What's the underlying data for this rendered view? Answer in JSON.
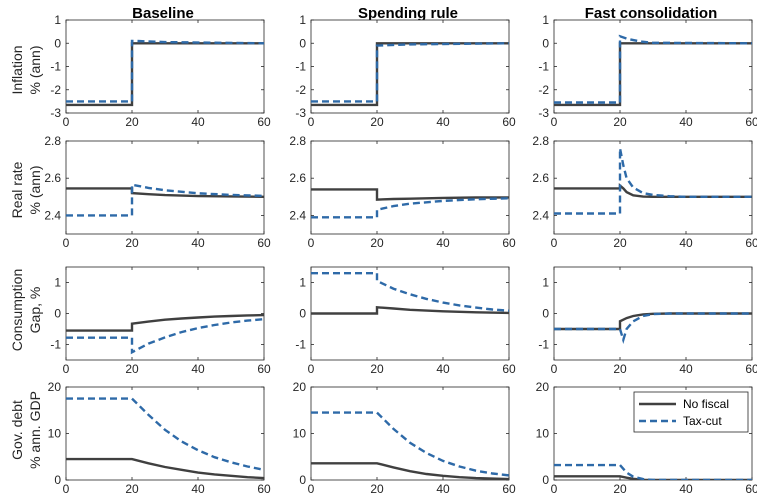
{
  "figure": {
    "columns": [
      "Baseline",
      "Spending rule",
      "Fast consolidation"
    ],
    "row_labels": [
      [
        "Inflation",
        "% (ann)"
      ],
      [
        "Real rate",
        "% (ann)"
      ],
      [
        "Consumption",
        "Gap, %"
      ],
      [
        "Gov. debt",
        "% ann. GDP"
      ]
    ],
    "legend": {
      "entries": [
        "No fiscal",
        "Tax-cut"
      ],
      "location": "top-right of the bottom-right panel"
    },
    "colors": {
      "no_fiscal": "#404040",
      "tax_cut": "#2e6aa8",
      "axis": "#262626"
    }
  },
  "chart_data": [
    {
      "type": "line",
      "row": 0,
      "col": 0,
      "title": "Baseline",
      "ylabel": "Inflation % (ann)",
      "xlim": [
        0,
        60
      ],
      "ylim": [
        -3,
        1
      ],
      "xticks": [
        0,
        20,
        40,
        60
      ],
      "yticks": [
        -3,
        -2,
        -1,
        0,
        1
      ],
      "series": [
        {
          "name": "No fiscal",
          "style": "solid",
          "x": [
            0,
            20,
            20,
            60
          ],
          "y": [
            -2.65,
            -2.65,
            0,
            0
          ]
        },
        {
          "name": "Tax-cut",
          "style": "dashed",
          "x": [
            0,
            20,
            20,
            21,
            30,
            60
          ],
          "y": [
            -2.5,
            -2.5,
            0.1,
            0.1,
            0.05,
            0
          ]
        }
      ]
    },
    {
      "type": "line",
      "row": 0,
      "col": 1,
      "title": "Spending rule",
      "xlim": [
        0,
        60
      ],
      "ylim": [
        -3,
        1
      ],
      "xticks": [
        0,
        20,
        40,
        60
      ],
      "yticks": [
        -3,
        -2,
        -1,
        0,
        1
      ],
      "series": [
        {
          "name": "No fiscal",
          "style": "solid",
          "x": [
            0,
            20,
            20,
            60
          ],
          "y": [
            -2.65,
            -2.65,
            0,
            0
          ]
        },
        {
          "name": "Tax-cut",
          "style": "dashed",
          "x": [
            0,
            20,
            20,
            30,
            60
          ],
          "y": [
            -2.5,
            -2.5,
            -0.1,
            -0.05,
            0
          ]
        }
      ]
    },
    {
      "type": "line",
      "row": 0,
      "col": 2,
      "title": "Fast consolidation",
      "xlim": [
        0,
        60
      ],
      "ylim": [
        -3,
        1
      ],
      "xticks": [
        0,
        20,
        40,
        60
      ],
      "yticks": [
        -3,
        -2,
        -1,
        0,
        1
      ],
      "series": [
        {
          "name": "No fiscal",
          "style": "solid",
          "x": [
            0,
            20,
            20,
            60
          ],
          "y": [
            -2.65,
            -2.65,
            0,
            0
          ]
        },
        {
          "name": "Tax-cut",
          "style": "dashed",
          "x": [
            0,
            20,
            20,
            22,
            26,
            30,
            60
          ],
          "y": [
            -2.55,
            -2.55,
            0.3,
            0.2,
            0.08,
            0.02,
            0
          ]
        }
      ]
    },
    {
      "type": "line",
      "row": 1,
      "col": 0,
      "ylabel": "Real rate % (ann)",
      "xlim": [
        0,
        60
      ],
      "ylim": [
        2.3,
        2.8
      ],
      "xticks": [
        0,
        20,
        40,
        60
      ],
      "yticks": [
        2.4,
        2.6,
        2.8
      ],
      "series": [
        {
          "name": "No fiscal",
          "style": "solid",
          "x": [
            0,
            20,
            20,
            25,
            30,
            40,
            50,
            60
          ],
          "y": [
            2.545,
            2.545,
            2.52,
            2.514,
            2.509,
            2.504,
            2.502,
            2.5
          ]
        },
        {
          "name": "Tax-cut",
          "style": "dashed",
          "x": [
            0,
            20,
            20,
            25,
            30,
            40,
            50,
            60
          ],
          "y": [
            2.4,
            2.4,
            2.565,
            2.548,
            2.535,
            2.519,
            2.51,
            2.505
          ]
        }
      ]
    },
    {
      "type": "line",
      "row": 1,
      "col": 1,
      "xlim": [
        0,
        60
      ],
      "ylim": [
        2.3,
        2.8
      ],
      "xticks": [
        0,
        20,
        40,
        60
      ],
      "yticks": [
        2.4,
        2.6,
        2.8
      ],
      "series": [
        {
          "name": "No fiscal",
          "style": "solid",
          "x": [
            0,
            20,
            20,
            25,
            30,
            40,
            50,
            60
          ],
          "y": [
            2.54,
            2.54,
            2.485,
            2.488,
            2.49,
            2.494,
            2.496,
            2.497
          ]
        },
        {
          "name": "Tax-cut",
          "style": "dashed",
          "x": [
            0,
            20,
            20,
            25,
            30,
            40,
            50,
            60
          ],
          "y": [
            2.39,
            2.39,
            2.43,
            2.45,
            2.463,
            2.478,
            2.487,
            2.492
          ]
        }
      ]
    },
    {
      "type": "line",
      "row": 1,
      "col": 2,
      "xlim": [
        0,
        60
      ],
      "ylim": [
        2.3,
        2.8
      ],
      "xticks": [
        0,
        20,
        40,
        60
      ],
      "yticks": [
        2.4,
        2.6,
        2.8
      ],
      "series": [
        {
          "name": "No fiscal",
          "style": "solid",
          "x": [
            0,
            20,
            20,
            21,
            22,
            24,
            27,
            30,
            40,
            60
          ],
          "y": [
            2.545,
            2.545,
            2.56,
            2.545,
            2.525,
            2.508,
            2.501,
            2.5,
            2.5,
            2.5
          ]
        },
        {
          "name": "Tax-cut",
          "style": "dashed",
          "x": [
            0,
            20,
            20,
            21,
            22,
            24,
            27,
            30,
            35,
            40,
            60
          ],
          "y": [
            2.41,
            2.41,
            2.76,
            2.67,
            2.6,
            2.55,
            2.52,
            2.51,
            2.503,
            2.5,
            2.5
          ]
        }
      ]
    },
    {
      "type": "line",
      "row": 2,
      "col": 0,
      "ylabel": "Consumption Gap, %",
      "xlim": [
        0,
        60
      ],
      "ylim": [
        -1.5,
        1.5
      ],
      "xticks": [
        0,
        20,
        40,
        60
      ],
      "yticks": [
        -1,
        0,
        1
      ],
      "series": [
        {
          "name": "No fiscal",
          "style": "solid",
          "x": [
            0,
            20,
            20,
            25,
            30,
            35,
            40,
            45,
            50,
            55,
            60
          ],
          "y": [
            -0.55,
            -0.55,
            -0.33,
            -0.26,
            -0.2,
            -0.16,
            -0.13,
            -0.1,
            -0.08,
            -0.06,
            -0.05
          ]
        },
        {
          "name": "Tax-cut",
          "style": "dashed",
          "x": [
            0,
            20,
            20,
            25,
            30,
            35,
            40,
            45,
            50,
            55,
            60
          ],
          "y": [
            -0.78,
            -0.78,
            -1.25,
            -0.97,
            -0.77,
            -0.6,
            -0.47,
            -0.37,
            -0.29,
            -0.23,
            -0.18
          ]
        }
      ]
    },
    {
      "type": "line",
      "row": 2,
      "col": 1,
      "xlim": [
        0,
        60
      ],
      "ylim": [
        -1.5,
        1.5
      ],
      "xticks": [
        0,
        20,
        40,
        60
      ],
      "yticks": [
        -1,
        0,
        1
      ],
      "series": [
        {
          "name": "No fiscal",
          "style": "solid",
          "x": [
            0,
            20,
            20,
            25,
            30,
            40,
            50,
            60
          ],
          "y": [
            0,
            0,
            0.2,
            0.16,
            0.12,
            0.07,
            0.04,
            0.02
          ]
        },
        {
          "name": "Tax-cut",
          "style": "dashed",
          "x": [
            0,
            20,
            20,
            25,
            30,
            35,
            40,
            45,
            50,
            55,
            60
          ],
          "y": [
            1.3,
            1.3,
            1.05,
            0.8,
            0.62,
            0.47,
            0.35,
            0.26,
            0.19,
            0.13,
            0.09
          ]
        }
      ]
    },
    {
      "type": "line",
      "row": 2,
      "col": 2,
      "xlim": [
        0,
        60
      ],
      "ylim": [
        -1.5,
        1.5
      ],
      "xticks": [
        0,
        20,
        40,
        60
      ],
      "yticks": [
        -1,
        0,
        1
      ],
      "series": [
        {
          "name": "No fiscal",
          "style": "solid",
          "x": [
            0,
            20,
            20,
            22,
            24,
            27,
            30,
            35,
            60
          ],
          "y": [
            -0.5,
            -0.5,
            -0.25,
            -0.15,
            -0.08,
            -0.03,
            -0.01,
            0,
            0
          ]
        },
        {
          "name": "Tax-cut",
          "style": "dashed",
          "x": [
            0,
            20,
            21,
            22,
            24,
            27,
            30,
            35,
            60
          ],
          "y": [
            -0.5,
            -0.5,
            -0.85,
            -0.5,
            -0.25,
            -0.08,
            -0.02,
            0,
            0
          ]
        }
      ]
    },
    {
      "type": "line",
      "row": 3,
      "col": 0,
      "ylabel": "Gov. debt % ann. GDP",
      "xlim": [
        0,
        60
      ],
      "ylim": [
        0,
        20
      ],
      "xticks": [
        0,
        20,
        40,
        60
      ],
      "yticks": [
        0,
        10,
        20
      ],
      "series": [
        {
          "name": "No fiscal",
          "style": "solid",
          "x": [
            0,
            20,
            25,
            30,
            35,
            40,
            45,
            50,
            55,
            60
          ],
          "y": [
            4.5,
            4.5,
            3.6,
            2.8,
            2.2,
            1.6,
            1.2,
            0.9,
            0.6,
            0.4
          ]
        },
        {
          "name": "Tax-cut",
          "style": "dashed",
          "x": [
            0,
            20,
            25,
            30,
            35,
            40,
            45,
            50,
            55,
            60
          ],
          "y": [
            17.5,
            17.5,
            14,
            10.8,
            8.3,
            6.4,
            4.9,
            3.8,
            2.9,
            2.2
          ]
        }
      ]
    },
    {
      "type": "line",
      "row": 3,
      "col": 1,
      "xlim": [
        0,
        60
      ],
      "ylim": [
        0,
        20
      ],
      "xticks": [
        0,
        20,
        40,
        60
      ],
      "yticks": [
        0,
        10,
        20
      ],
      "series": [
        {
          "name": "No fiscal",
          "style": "solid",
          "x": [
            0,
            20,
            25,
            30,
            35,
            40,
            45,
            50,
            55,
            60
          ],
          "y": [
            3.6,
            3.6,
            2.7,
            1.9,
            1.3,
            0.9,
            0.6,
            0.4,
            0.3,
            0.2
          ]
        },
        {
          "name": "Tax-cut",
          "style": "dashed",
          "x": [
            0,
            20,
            25,
            30,
            35,
            40,
            45,
            50,
            55,
            60
          ],
          "y": [
            14.5,
            14.5,
            11,
            8,
            5.8,
            4.1,
            2.9,
            2,
            1.4,
            1
          ]
        }
      ]
    },
    {
      "type": "line",
      "row": 3,
      "col": 2,
      "xlim": [
        0,
        60
      ],
      "ylim": [
        0,
        20
      ],
      "xticks": [
        0,
        20,
        40,
        60
      ],
      "yticks": [
        0,
        10,
        20
      ],
      "legend": [
        "No fiscal",
        "Tax-cut"
      ],
      "series": [
        {
          "name": "No fiscal",
          "style": "solid",
          "x": [
            0,
            20,
            22,
            24,
            27,
            30,
            60
          ],
          "y": [
            0.8,
            0.8,
            0.5,
            0.25,
            0.05,
            0,
            0
          ]
        },
        {
          "name": "Tax-cut",
          "style": "dashed",
          "x": [
            0,
            20,
            22,
            24,
            27,
            30,
            60
          ],
          "y": [
            3.2,
            3.2,
            1.6,
            0.7,
            0.2,
            0,
            0
          ]
        }
      ]
    }
  ]
}
